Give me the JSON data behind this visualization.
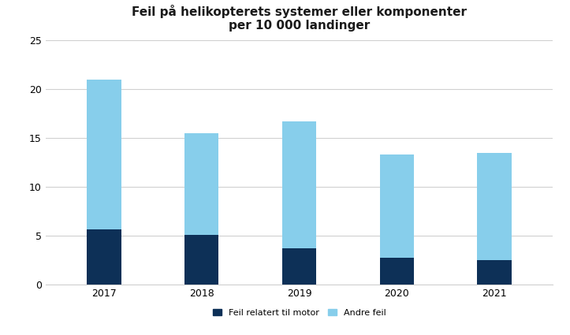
{
  "years": [
    "2017",
    "2018",
    "2019",
    "2020",
    "2021"
  ],
  "motor": [
    5.7,
    5.1,
    3.7,
    2.8,
    2.5
  ],
  "andre": [
    15.3,
    10.4,
    13.0,
    10.5,
    11.0
  ],
  "color_motor": "#0d3057",
  "color_andre": "#87CEEB",
  "title_line1": "Feil på helikopterets systemer eller komponenter",
  "title_line2": "per 10 000 landinger",
  "legend_motor": "Feil relatert til motor",
  "legend_andre": "Andre feil",
  "ylim": [
    0,
    25
  ],
  "yticks": [
    0,
    5,
    10,
    15,
    20,
    25
  ],
  "background_color": "#ffffff",
  "grid_color": "#d0d0d0",
  "bar_width": 0.35,
  "title_fontsize": 11,
  "tick_fontsize": 9
}
